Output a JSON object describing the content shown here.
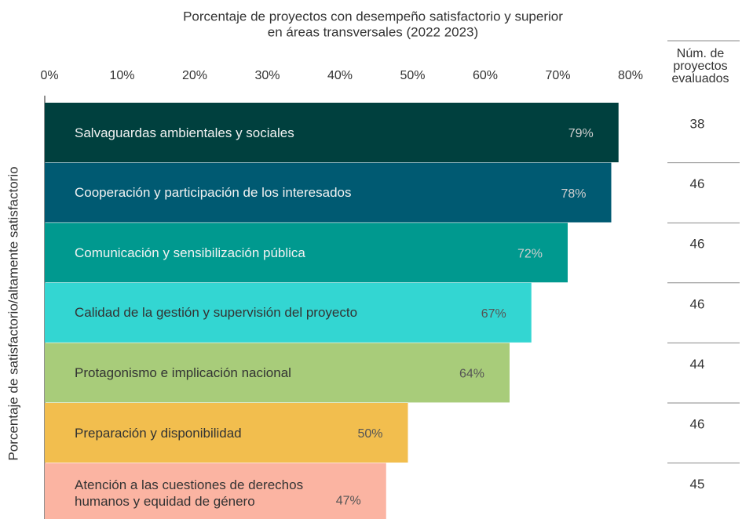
{
  "chart_data": {
    "type": "bar",
    "orientation": "horizontal",
    "title": [
      "Porcentaje de proyectos con desempeño satisfactorio y superior",
      "en áreas transversales (2022 2023)"
    ],
    "y_axis_label": "Porcentaje de satisfactorio/altamente satisfactorio",
    "categories": [
      "Salvaguardas ambientales y sociales",
      "Cooperación y participación de los interesados",
      "Comunicación y sensibilización pública",
      "Calidad de la gestión y supervisión del proyecto",
      "Protagonismo e implicación nacional",
      "Preparación y disponibilidad",
      "Atención a las cuestiones de derechos\nhumanos y equidad de género"
    ],
    "values": [
      79,
      78,
      72,
      67,
      64,
      50,
      47
    ],
    "value_labels": [
      "79%",
      "78%",
      "72%",
      "67%",
      "64%",
      "50%",
      "47%"
    ],
    "colors": [
      "#00403e",
      "#005a72",
      "#00998f",
      "#33d6d2",
      "#a8cc7a",
      "#f2be4e",
      "#fbb4a2"
    ],
    "xlim": [
      0,
      80
    ],
    "xticks": [
      {
        "value": 0,
        "label": "0%"
      },
      {
        "value": 10,
        "label": "10%"
      },
      {
        "value": 20,
        "label": "20%"
      },
      {
        "value": 30,
        "label": "30%"
      },
      {
        "value": 40,
        "label": "40%"
      },
      {
        "value": 50,
        "label": "50%"
      },
      {
        "value": 60,
        "label": "60%"
      },
      {
        "value": 70,
        "label": "70%"
      },
      {
        "value": 80,
        "label": "80%"
      }
    ],
    "counts_header": "Núm. de\nproyectos\nevaluados",
    "counts": [
      38,
      46,
      46,
      46,
      44,
      46,
      45
    ]
  }
}
